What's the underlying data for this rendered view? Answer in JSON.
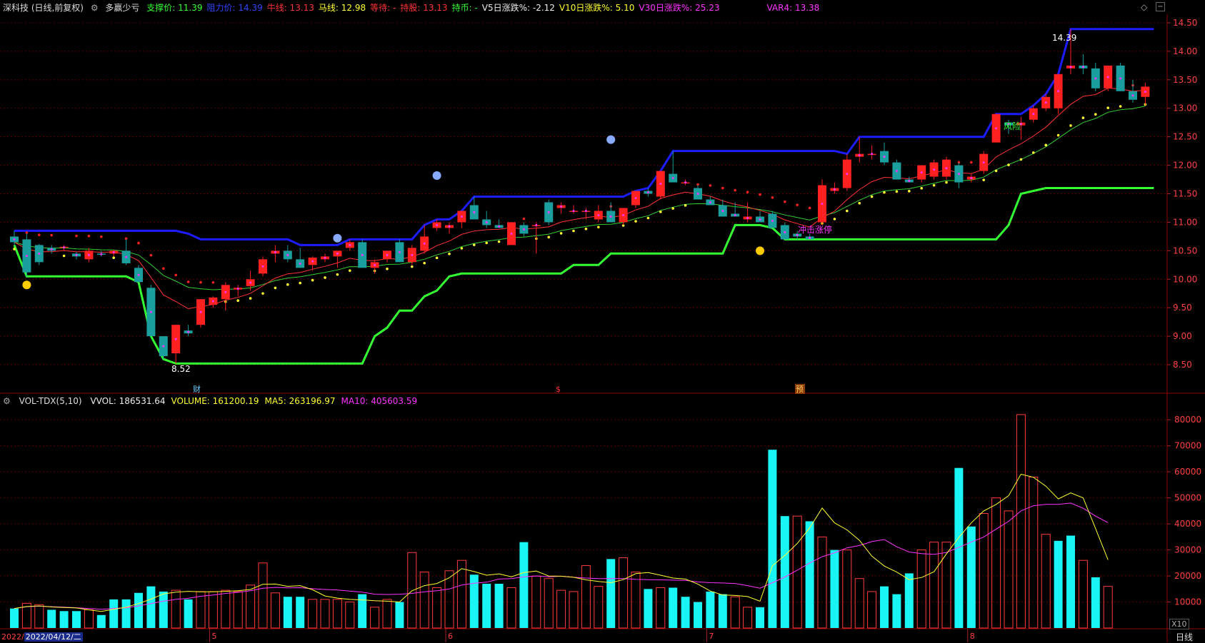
{
  "header": {
    "stock": "深科技 (日线,前复权)",
    "indicator": "多赢少亏",
    "items": [
      {
        "label": "支撑价:",
        "value": "11.39",
        "color": "#33ff33"
      },
      {
        "label": "阻力价:",
        "value": "14.39",
        "color": "#3344ff"
      },
      {
        "label": "牛线:",
        "value": "13.13",
        "color": "#ff3333"
      },
      {
        "label": "马线:",
        "value": "12.98",
        "color": "#ffff33"
      },
      {
        "label": "等待:",
        "value": "-",
        "color": "#ff3333"
      },
      {
        "label": "持股:",
        "value": "13.13",
        "color": "#ff3333"
      },
      {
        "label": "持币:",
        "value": "-",
        "color": "#33ff33"
      },
      {
        "label": "V5日涨跌%:",
        "value": "-2.12",
        "color": "#eeeeee"
      },
      {
        "label": "V10日涨跌%:",
        "value": "5.10",
        "color": "#ffff33"
      },
      {
        "label": "V30日涨跌%:",
        "value": "25.23",
        "color": "#ff33ff"
      },
      {
        "label": "VAR4:",
        "value": "13.38",
        "color": "#ff33ff"
      }
    ]
  },
  "volume_header": {
    "name": "VOL-TDX(5,10)",
    "items": [
      {
        "label": "VVOL:",
        "value": "186531.64",
        "color": "#eeeeee"
      },
      {
        "label": "VOLUME:",
        "value": "161200.19",
        "color": "#ffff33"
      },
      {
        "label": "MA5:",
        "value": "263196.97",
        "color": "#ffff33"
      },
      {
        "label": "MA10:",
        "value": "405603.59",
        "color": "#ff33ff"
      }
    ]
  },
  "footer": {
    "date_year": "2022/",
    "date_selected": "2022/04/12/二",
    "period": "日线",
    "scale": "X10"
  },
  "annotations": {
    "high_label": "14.39",
    "low_label": "8.52",
    "zt_label": "冲击涨停",
    "risk_label": "风险",
    "cai": "财",
    "s": "$",
    "yu": "预"
  },
  "colors": {
    "up": "#ff2020",
    "down": "#1a9e9e",
    "support": "#33ff33",
    "resistance": "#1c1cff",
    "ma_fast": "#ff3333",
    "ma_slow": "#33cc33",
    "dots_red": "#ff2020",
    "dots_yellow": "#ffff33",
    "grid": "#5a0000",
    "axis": "#8b0000"
  },
  "chart_data": [
    {
      "type": "candlestick",
      "title": "深科技 (日线,前复权)",
      "ylim": [
        8.2,
        14.65
      ],
      "yticks": [
        8.5,
        9.0,
        9.5,
        10.0,
        10.5,
        11.0,
        11.5,
        12.0,
        12.5,
        13.0,
        13.5,
        14.0,
        14.5
      ],
      "x_month_labels": [
        {
          "index": 16,
          "label": "5"
        },
        {
          "index": 35,
          "label": "6"
        },
        {
          "index": 56,
          "label": "7"
        },
        {
          "index": 77,
          "label": "8"
        }
      ],
      "ohlc": [
        [
          10.75,
          10.85,
          10.6,
          10.65
        ],
        [
          10.7,
          10.8,
          10.05,
          10.12
        ],
        [
          10.6,
          10.62,
          10.25,
          10.3
        ],
        [
          10.55,
          10.6,
          10.45,
          10.5
        ],
        [
          10.55,
          10.6,
          10.5,
          10.57
        ],
        [
          10.45,
          10.48,
          10.35,
          10.4
        ],
        [
          10.35,
          10.55,
          10.3,
          10.5
        ],
        [
          10.45,
          10.5,
          10.4,
          10.43
        ],
        [
          10.45,
          10.52,
          10.4,
          10.5
        ],
        [
          10.5,
          10.7,
          10.25,
          10.28
        ],
        [
          10.2,
          10.25,
          9.95,
          9.95
        ],
        [
          9.85,
          9.9,
          9.0,
          9.0
        ],
        [
          9.0,
          9.0,
          8.6,
          8.65
        ],
        [
          8.7,
          9.2,
          8.52,
          9.2
        ],
        [
          9.1,
          9.2,
          9.0,
          9.05
        ],
        [
          9.2,
          9.65,
          9.15,
          9.65
        ],
        [
          9.55,
          9.7,
          9.5,
          9.68
        ],
        [
          9.65,
          9.95,
          9.45,
          9.9
        ],
        [
          9.82,
          9.9,
          9.7,
          9.85
        ],
        [
          9.88,
          10.15,
          9.8,
          10.0
        ],
        [
          10.1,
          10.4,
          10.05,
          10.35
        ],
        [
          10.45,
          10.6,
          10.3,
          10.5
        ],
        [
          10.5,
          10.6,
          10.3,
          10.35
        ],
        [
          10.35,
          10.55,
          10.2,
          10.2
        ],
        [
          10.25,
          10.4,
          10.15,
          10.38
        ],
        [
          10.35,
          10.45,
          10.3,
          10.4
        ],
        [
          10.4,
          10.5,
          10.2,
          10.5
        ],
        [
          10.55,
          10.7,
          10.5,
          10.65
        ],
        [
          10.65,
          10.7,
          10.2,
          10.2
        ],
        [
          10.2,
          10.35,
          10.1,
          10.3
        ],
        [
          10.35,
          10.5,
          10.3,
          10.5
        ],
        [
          10.65,
          10.7,
          10.3,
          10.3
        ],
        [
          10.3,
          10.6,
          10.25,
          10.55
        ],
        [
          10.5,
          10.95,
          10.45,
          10.75
        ],
        [
          10.9,
          11.05,
          10.85,
          11.0
        ],
        [
          10.9,
          11.0,
          10.8,
          10.95
        ],
        [
          11.0,
          11.2,
          10.9,
          11.2
        ],
        [
          11.3,
          11.45,
          11.05,
          11.05
        ],
        [
          11.05,
          11.2,
          10.9,
          10.95
        ],
        [
          10.95,
          11.05,
          10.9,
          10.9
        ],
        [
          10.6,
          11.0,
          10.6,
          11.0
        ],
        [
          10.95,
          11.0,
          10.75,
          10.8
        ],
        [
          10.95,
          11.0,
          10.45,
          10.95
        ],
        [
          11.35,
          11.4,
          10.95,
          11.0
        ],
        [
          11.25,
          11.35,
          11.15,
          11.3
        ],
        [
          11.2,
          11.3,
          11.15,
          11.2
        ],
        [
          11.2,
          11.25,
          11.05,
          11.2
        ],
        [
          11.05,
          11.3,
          11.0,
          11.2
        ],
        [
          11.2,
          11.35,
          11.0,
          11.0
        ],
        [
          11.0,
          11.25,
          10.95,
          11.25
        ],
        [
          11.3,
          11.55,
          11.25,
          11.55
        ],
        [
          11.55,
          11.6,
          11.45,
          11.5
        ],
        [
          11.45,
          11.9,
          11.4,
          11.9
        ],
        [
          11.85,
          12.25,
          11.7,
          11.7
        ],
        [
          11.7,
          11.75,
          11.65,
          11.7
        ],
        [
          11.6,
          11.65,
          11.45,
          11.4
        ],
        [
          11.4,
          11.45,
          11.3,
          11.3
        ],
        [
          11.3,
          11.4,
          11.1,
          11.1
        ],
        [
          11.15,
          11.35,
          11.1,
          11.1
        ],
        [
          11.05,
          11.35,
          11.0,
          11.1
        ],
        [
          11.1,
          11.2,
          11.0,
          11.0
        ],
        [
          11.15,
          11.2,
          10.9,
          10.9
        ],
        [
          10.95,
          11.0,
          10.7,
          10.7
        ],
        [
          10.8,
          10.85,
          10.7,
          10.75
        ],
        [
          10.75,
          10.8,
          10.7,
          10.7
        ],
        [
          11.0,
          11.75,
          10.95,
          11.65
        ],
        [
          11.55,
          11.7,
          11.5,
          11.6
        ],
        [
          11.6,
          12.2,
          11.55,
          12.1
        ],
        [
          12.15,
          12.5,
          12.05,
          12.2
        ],
        [
          12.2,
          12.35,
          12.1,
          12.2
        ],
        [
          12.25,
          12.4,
          12.0,
          12.05
        ],
        [
          12.05,
          12.1,
          11.75,
          11.75
        ],
        [
          11.75,
          11.8,
          11.7,
          11.7
        ],
        [
          11.75,
          12.0,
          11.7,
          12.0
        ],
        [
          11.8,
          12.1,
          11.75,
          12.05
        ],
        [
          11.8,
          12.15,
          11.75,
          12.1
        ],
        [
          12.0,
          12.05,
          11.6,
          11.7
        ],
        [
          11.75,
          11.85,
          11.7,
          11.8
        ],
        [
          11.9,
          12.25,
          11.85,
          12.2
        ],
        [
          12.4,
          12.9,
          12.4,
          12.9
        ],
        [
          12.75,
          12.8,
          12.55,
          12.7
        ],
        [
          12.7,
          12.85,
          12.45,
          12.75
        ],
        [
          12.8,
          13.05,
          12.75,
          13.0
        ],
        [
          13.0,
          13.25,
          12.95,
          13.2
        ],
        [
          13.0,
          13.6,
          12.9,
          13.6
        ],
        [
          13.7,
          14.39,
          13.6,
          13.75
        ],
        [
          13.75,
          13.95,
          13.6,
          13.7
        ],
        [
          13.7,
          13.8,
          13.3,
          13.35
        ],
        [
          13.35,
          13.75,
          13.3,
          13.75
        ],
        [
          13.75,
          13.8,
          13.35,
          13.3
        ],
        [
          13.3,
          13.5,
          13.1,
          13.15
        ],
        [
          13.2,
          13.45,
          13.05,
          13.38
        ]
      ]
    },
    {
      "type": "bar",
      "title": "VOL-TDX(5,10)",
      "ylim": [
        0,
        85000
      ],
      "yticks": [
        10000,
        20000,
        30000,
        40000,
        50000,
        60000,
        70000,
        80000
      ],
      "values": [
        7500,
        9500,
        9000,
        7000,
        6500,
        6500,
        7000,
        5000,
        11000,
        11000,
        13500,
        16000,
        14000,
        14500,
        11000,
        14000,
        14000,
        14500,
        14000,
        16500,
        25000,
        13500,
        12000,
        12000,
        11000,
        11000,
        11000,
        10000,
        13000,
        8000,
        11000,
        10000,
        29000,
        21500,
        15500,
        22000,
        26000,
        20500,
        17000,
        17000,
        15500,
        33000,
        20000,
        19000,
        14500,
        14000,
        24000,
        16000,
        26500,
        27000,
        21500,
        15000,
        15500,
        15500,
        12000,
        10000,
        14000,
        13000,
        12000,
        8000,
        8000,
        68500,
        43000,
        43000,
        41000,
        35000,
        30000,
        30000,
        19000,
        14000,
        16000,
        13000,
        21000,
        30000,
        33000,
        33000,
        61500,
        39000,
        44000,
        50000,
        45000,
        82000,
        58000,
        36000,
        33500,
        35500,
        26000,
        19500,
        16000
      ],
      "up": [
        0,
        1,
        1,
        0,
        0,
        0,
        1,
        0,
        0,
        0,
        0,
        0,
        0,
        1,
        0,
        1,
        1,
        1,
        1,
        1,
        1,
        1,
        0,
        0,
        1,
        1,
        1,
        1,
        0,
        1,
        1,
        0,
        1,
        1,
        1,
        1,
        1,
        0,
        0,
        0,
        1,
        0,
        1,
        1,
        1,
        1,
        1,
        1,
        0,
        1,
        1,
        0,
        1,
        0,
        0,
        0,
        0,
        0,
        1,
        1,
        0,
        0,
        0,
        1,
        0,
        1,
        0,
        1,
        1,
        1,
        0,
        0,
        0,
        1,
        1,
        1,
        0,
        0,
        1,
        1,
        1,
        1,
        1,
        1,
        0,
        0,
        1,
        0,
        1
      ],
      "series_ma5": [
        7500,
        8250,
        8500,
        8100,
        7900,
        7700,
        7000,
        6400,
        7200,
        8000,
        9400,
        11100,
        13100,
        13800,
        14100,
        13900,
        13900,
        14100,
        14300,
        14800,
        16800,
        16900,
        16000,
        16300,
        14700,
        12300,
        11500,
        11000,
        10800,
        10500,
        10300,
        10000,
        14300,
        16300,
        17100,
        19300,
        22800,
        21700,
        20300,
        20800,
        19700,
        21300,
        21900,
        20000,
        19900,
        19500,
        18500,
        17900,
        17400,
        18600,
        20900,
        21300,
        20300,
        19200,
        18800,
        16900,
        14200,
        12700,
        12500,
        12100,
        10300,
        23900,
        27900,
        32500,
        38500,
        46100,
        40400,
        37700,
        33700,
        27600,
        23800,
        21500,
        18600,
        19400,
        21600,
        28500,
        34800,
        40400,
        45000,
        47500,
        50800,
        59100,
        57900,
        54500,
        49600,
        51900,
        50000,
        38200,
        26200
      ],
      "series_ma10": [
        7500,
        8200,
        8400,
        8200,
        8000,
        7800,
        7500,
        7200,
        7500,
        7800,
        8500,
        9400,
        10300,
        11000,
        11400,
        12200,
        12700,
        13300,
        13700,
        14300,
        15300,
        15600,
        15400,
        15500,
        15100,
        14800,
        14600,
        14200,
        13800,
        13000,
        12900,
        13000,
        13300,
        13900,
        14300,
        15000,
        16500,
        17200,
        17600,
        18800,
        19000,
        19700,
        20000,
        19700,
        19900,
        19500,
        19200,
        19000,
        19000,
        19000,
        18700,
        18600,
        18500,
        18400,
        18300,
        17700,
        17400,
        17300,
        17100,
        16300,
        15300,
        17400,
        19600,
        22200,
        25000,
        27400,
        28900,
        30800,
        31700,
        33200,
        34000,
        31200,
        29200,
        28600,
        28300,
        29000,
        31000,
        33000,
        35000,
        38000,
        41000,
        45000,
        47000,
        47500,
        47500,
        48000,
        46000,
        43000,
        40500
      ]
    }
  ]
}
